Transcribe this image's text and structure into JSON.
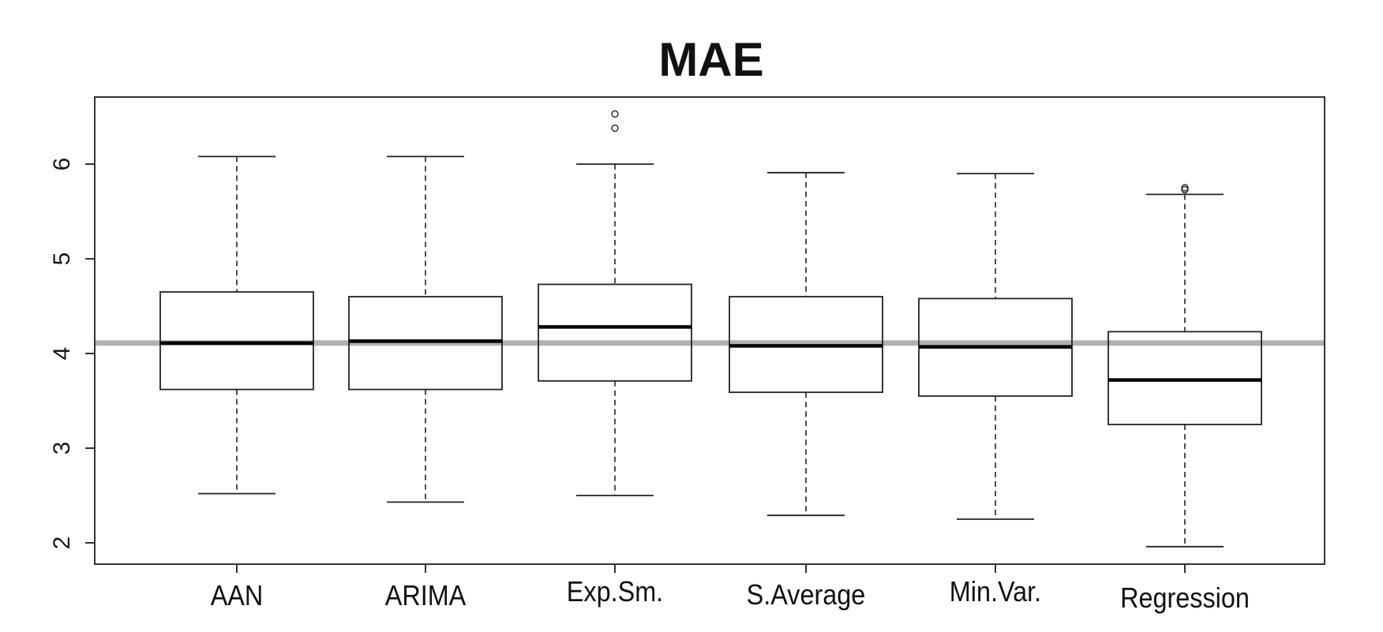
{
  "chart_data": {
    "type": "box",
    "title": "MAE",
    "xlabel": "",
    "ylabel": "",
    "ylim": [
      1.8,
      6.7
    ],
    "yticks": [
      2,
      3,
      4,
      5,
      6
    ],
    "grid": false,
    "legend": null,
    "reference_line": {
      "y": 4.11,
      "color": "#a8a8a8",
      "orientation": "horizontal"
    },
    "categories": [
      "AAN",
      "ARIMA",
      "Exp.Sm.",
      "S.Average",
      "Min.Var.",
      "Regression"
    ],
    "series": [
      {
        "name": "AAN",
        "whisker_low": 2.52,
        "q1": 3.62,
        "median": 4.11,
        "q3": 4.65,
        "whisker_high": 6.08,
        "outliers": []
      },
      {
        "name": "ARIMA",
        "whisker_low": 2.43,
        "q1": 3.62,
        "median": 4.13,
        "q3": 4.6,
        "whisker_high": 6.08,
        "outliers": []
      },
      {
        "name": "Exp.Sm.",
        "whisker_low": 2.5,
        "q1": 3.71,
        "median": 4.28,
        "q3": 4.73,
        "whisker_high": 6.0,
        "outliers": [
          6.38,
          6.53
        ]
      },
      {
        "name": "S.Average",
        "whisker_low": 2.29,
        "q1": 3.59,
        "median": 4.08,
        "q3": 4.6,
        "whisker_high": 5.91,
        "outliers": []
      },
      {
        "name": "Min.Var.",
        "whisker_low": 2.25,
        "q1": 3.55,
        "median": 4.07,
        "q3": 4.58,
        "whisker_high": 5.9,
        "outliers": []
      },
      {
        "name": "Regression",
        "whisker_low": 1.96,
        "q1": 3.25,
        "median": 3.72,
        "q3": 4.23,
        "whisker_high": 5.68,
        "outliers": [
          5.73,
          5.75
        ]
      }
    ]
  },
  "colors": {
    "axis": "#333333",
    "box_stroke": "#222222",
    "median": "#000000",
    "reference_line": "#a8a8a8",
    "background": "#ffffff"
  }
}
